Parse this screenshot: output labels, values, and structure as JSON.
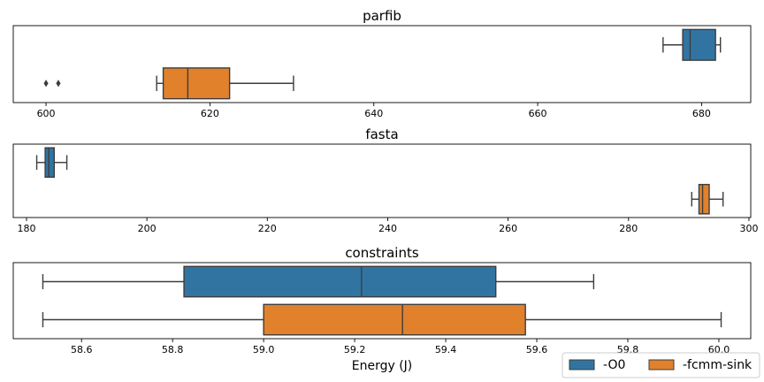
{
  "chart_data": [
    {
      "type": "boxplot",
      "title": "parfib",
      "xlabel": "",
      "xlim": [
        596,
        686
      ],
      "ticks": [
        600,
        620,
        640,
        660,
        680
      ],
      "series": [
        {
          "name": "-O0",
          "color": "#3274a1",
          "whisker_low": 675.3,
          "q1": 677.7,
          "median": 678.6,
          "q3": 681.7,
          "whisker_high": 682.3,
          "outliers": []
        },
        {
          "name": "-fcmm-sink",
          "color": "#e1812c",
          "whisker_low": 613.5,
          "q1": 614.3,
          "median": 617.3,
          "q3": 622.4,
          "whisker_high": 630.2,
          "outliers": [
            600.0,
            601.5
          ]
        }
      ]
    },
    {
      "type": "boxplot",
      "title": "fasta",
      "xlabel": "",
      "xlim": [
        177.8,
        300.3
      ],
      "ticks": [
        180,
        200,
        220,
        240,
        260,
        280,
        300
      ],
      "series": [
        {
          "name": "-O0",
          "color": "#3274a1",
          "whisker_low": 181.7,
          "q1": 183.1,
          "median": 183.7,
          "q3": 184.6,
          "whisker_high": 186.7,
          "outliers": []
        },
        {
          "name": "-fcmm-sink",
          "color": "#e1812c",
          "whisker_low": 290.5,
          "q1": 291.7,
          "median": 292.3,
          "q3": 293.4,
          "whisker_high": 295.7,
          "outliers": []
        }
      ]
    },
    {
      "type": "boxplot",
      "title": "constraints",
      "xlabel": "Energy (J)",
      "xlim": [
        58.45,
        60.07
      ],
      "ticks": [
        "58.6",
        "58.8",
        "59.0",
        "59.2",
        "59.4",
        "59.6",
        "59.8",
        "60.0"
      ],
      "series": [
        {
          "name": "-O0",
          "color": "#3274a1",
          "whisker_low": 58.515,
          "q1": 58.825,
          "median": 59.215,
          "q3": 59.51,
          "whisker_high": 59.725,
          "outliers": []
        },
        {
          "name": "-fcmm-sink",
          "color": "#e1812c",
          "whisker_low": 58.515,
          "q1": 59.0,
          "median": 59.305,
          "q3": 59.575,
          "whisker_high": 60.005,
          "outliers": []
        }
      ]
    }
  ],
  "legend": {
    "placement": "bottom-right",
    "entries": [
      {
        "label": "-O0",
        "color": "#3274a1"
      },
      {
        "label": "-fcmm-sink",
        "color": "#e1812c"
      }
    ]
  }
}
